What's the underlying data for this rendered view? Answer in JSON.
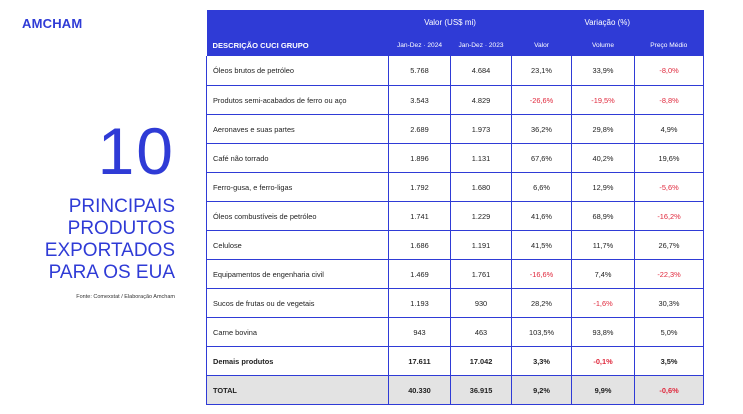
{
  "logo": "AMCHAM",
  "big_number": "10",
  "headline": [
    "PRINCIPAIS",
    "PRODUTOS",
    "EXPORTADOS",
    "PARA OS EUA"
  ],
  "source": {
    "label": "Fonte: ",
    "text": "Comexstat / Elaboração Amcham"
  },
  "table": {
    "group_header_value": "Valor (US$ mi)",
    "group_header_variation": "Variação (%)",
    "columns": [
      "DESCRIÇÃO CUCI GRUPO",
      "Jan-Dez · 2024",
      "Jan-Dez · 2023",
      "Valor",
      "Volume",
      "Preço Médio"
    ],
    "rows": [
      {
        "name": "Óleos brutos de petróleo",
        "v2024": "5.768",
        "v2023": "4.684",
        "valor": "23,1%",
        "volume": "33,9%",
        "preco": "-8,0%"
      },
      {
        "name": "Produtos semi-acabados de ferro ou aço",
        "v2024": "3.543",
        "v2023": "4.829",
        "valor": "-26,6%",
        "volume": "-19,5%",
        "preco": "-8,8%"
      },
      {
        "name": "Aeronaves e suas partes",
        "v2024": "2.689",
        "v2023": "1.973",
        "valor": "36,2%",
        "volume": "29,8%",
        "preco": "4,9%"
      },
      {
        "name": "Café não torrado",
        "v2024": "1.896",
        "v2023": "1.131",
        "valor": "67,6%",
        "volume": "40,2%",
        "preco": "19,6%"
      },
      {
        "name": "Ferro-gusa,  e ferro-ligas",
        "v2024": "1.792",
        "v2023": "1.680",
        "valor": "6,6%",
        "volume": "12,9%",
        "preco": "-5,6%"
      },
      {
        "name": "Óleos combustíveis de petróleo",
        "v2024": "1.741",
        "v2023": "1.229",
        "valor": "41,6%",
        "volume": "68,9%",
        "preco": "-16,2%"
      },
      {
        "name": "Celulose",
        "v2024": "1.686",
        "v2023": "1.191",
        "valor": "41,5%",
        "volume": "11,7%",
        "preco": "26,7%"
      },
      {
        "name": "Equipamentos de engenharia civil",
        "v2024": "1.469",
        "v2023": "1.761",
        "valor": "-16,6%",
        "volume": "7,4%",
        "preco": "-22,3%"
      },
      {
        "name": "Sucos de frutas ou de vegetais",
        "v2024": "1.193",
        "v2023": "930",
        "valor": "28,2%",
        "volume": "-1,6%",
        "preco": "30,3%"
      },
      {
        "name": "Carne bovina",
        "v2024": "943",
        "v2023": "463",
        "valor": "103,5%",
        "volume": "93,8%",
        "preco": "5,0%"
      }
    ],
    "others": {
      "name": "Demais produtos",
      "v2024": "17.611",
      "v2023": "17.042",
      "valor": "3,3%",
      "volume": "-0,1%",
      "preco": "3,5%"
    },
    "total": {
      "name": "TOTAL",
      "v2024": "40.330",
      "v2023": "36.915",
      "valor": "9,2%",
      "volume": "9,9%",
      "preco": "-0,6%"
    }
  },
  "colors": {
    "accent": "#2f3bd6",
    "negative": "#e0283c",
    "total_bg": "#e3e3e3"
  }
}
